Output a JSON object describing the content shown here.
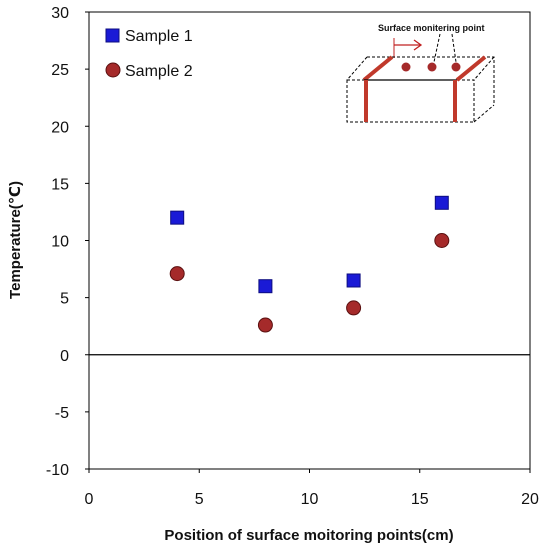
{
  "chart_data": {
    "type": "scatter",
    "title": "",
    "xlabel": "Position of surface moitoring points(cm)",
    "ylabel": "Temperature(℃)",
    "xlim": [
      0,
      20
    ],
    "ylim": [
      -10,
      30
    ],
    "xticks": [
      0,
      5,
      10,
      15,
      20
    ],
    "yticks": [
      -10,
      -5,
      0,
      5,
      10,
      15,
      20,
      25,
      30
    ],
    "xtick_labels": [
      "0",
      "5",
      "10",
      "15",
      "20"
    ],
    "ytick_labels": [
      "-10",
      "-5",
      "0",
      "5",
      "10",
      "15",
      "20",
      "25",
      "30"
    ],
    "grid": false,
    "zero_line": true,
    "legend_position": "top-left",
    "series": [
      {
        "name": "Sample 1",
        "marker": "square",
        "color": "#1a1ad6",
        "x": [
          4,
          8,
          12,
          16
        ],
        "y": [
          12,
          6,
          6.5,
          13.3
        ]
      },
      {
        "name": "Sample 2",
        "marker": "circle",
        "color": "#a52a2a",
        "x": [
          4,
          8,
          12,
          16
        ],
        "y": [
          7.1,
          2.6,
          4.1,
          10
        ]
      }
    ],
    "annotations": [
      {
        "text": "Surface monitering point",
        "type": "inset-diagram"
      }
    ]
  }
}
